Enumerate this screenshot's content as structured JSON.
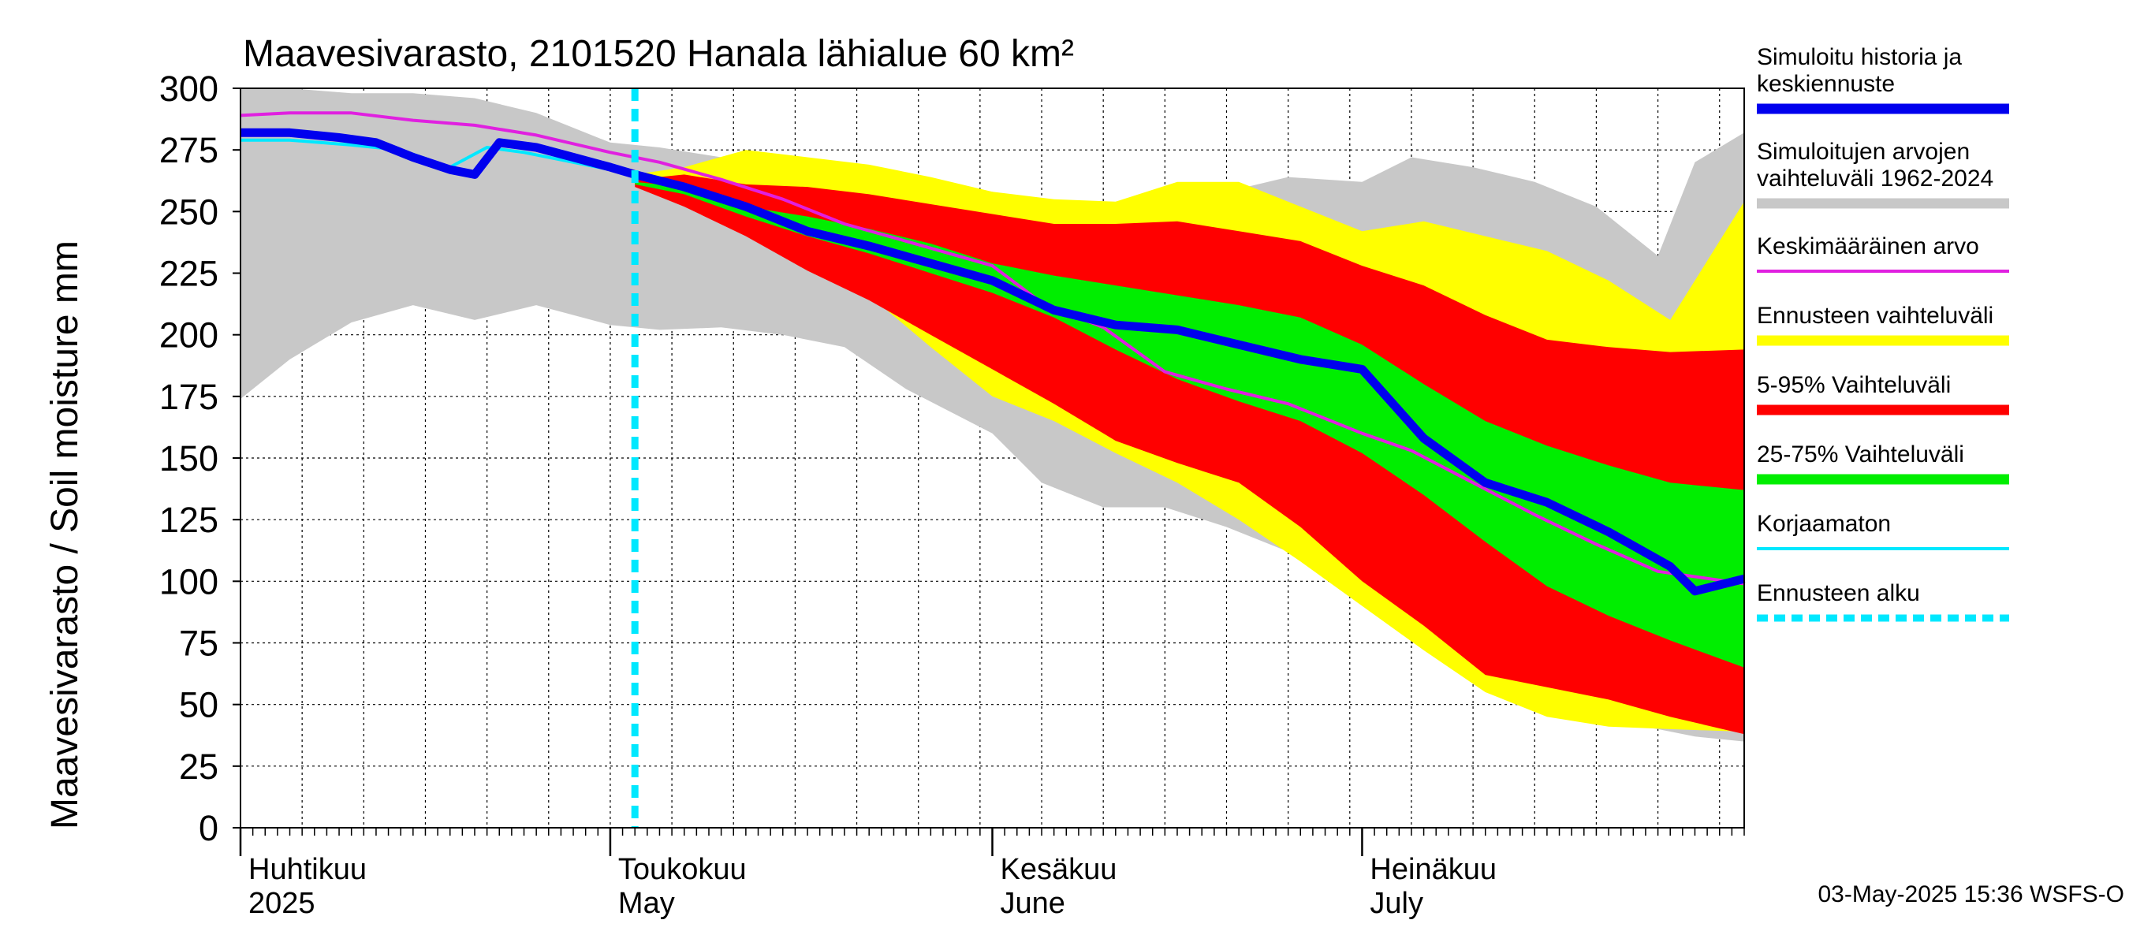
{
  "title": "Maavesivarasto, 2101520 Hanala lähialue 60 km²",
  "ylabel": "Maavesivarasto / Soil moisture   mm",
  "timestamp": "03-May-2025 15:36 WSFS-O",
  "colors": {
    "history": "#0000ee",
    "range_1962_2024": "#c8c8c8",
    "mean": "#e020e0",
    "forecast_range": "#ffff00",
    "p5_95": "#ff0000",
    "p25_75": "#00ee00",
    "uncorrected": "#00e8ff",
    "forecast_start": "#00e8ff"
  },
  "legend": [
    {
      "key": "history",
      "lines": [
        "Simuloitu historia ja",
        "keskiennuste"
      ],
      "style": "thick"
    },
    {
      "key": "range_1962_2024",
      "lines": [
        "Simuloitujen arvojen",
        "vaihteluväli 1962-2024"
      ],
      "style": "thick"
    },
    {
      "key": "mean",
      "lines": [
        "Keskimääräinen arvo"
      ],
      "style": "thin"
    },
    {
      "key": "forecast_range",
      "lines": [
        "Ennusteen vaihteluväli"
      ],
      "style": "thick"
    },
    {
      "key": "p5_95",
      "lines": [
        "5-95% Vaihteluväli"
      ],
      "style": "thick"
    },
    {
      "key": "p25_75",
      "lines": [
        "25-75% Vaihteluväli"
      ],
      "style": "thick"
    },
    {
      "key": "uncorrected",
      "lines": [
        "Korjaamaton"
      ],
      "style": "thin"
    },
    {
      "key": "forecast_start",
      "lines": [
        "Ennusteen alku"
      ],
      "style": "dashed"
    }
  ],
  "chart_data": {
    "type": "area",
    "title": "Maavesivarasto, 2101520 Hanala lähialue 60 km²",
    "ylabel": "Maavesivarasto / Soil moisture   mm",
    "ylim": [
      0,
      300
    ],
    "yticks": [
      0,
      25,
      50,
      75,
      100,
      125,
      150,
      175,
      200,
      225,
      250,
      275,
      300
    ],
    "xlim": [
      "2025-04-01",
      "2025-08-01"
    ],
    "grid": true,
    "legend_position": "right",
    "forecast_start": "2025-05-03",
    "x_months": [
      {
        "start": "2025-04-01",
        "fi": "Huhtikuu",
        "en": "2025"
      },
      {
        "start": "2025-05-01",
        "fi": "Toukokuu",
        "en": "May"
      },
      {
        "start": "2025-06-01",
        "fi": "Kesäkuu",
        "en": "June"
      },
      {
        "start": "2025-07-01",
        "fi": "Heinäkuu",
        "en": "July"
      }
    ],
    "range_1962_2024": {
      "x": [
        "2025-04-01",
        "2025-04-05",
        "2025-04-10",
        "2025-04-15",
        "2025-04-20",
        "2025-04-25",
        "2025-05-01",
        "2025-05-05",
        "2025-05-10",
        "2025-05-15",
        "2025-05-20",
        "2025-05-25",
        "2025-06-01",
        "2025-06-05",
        "2025-06-10",
        "2025-06-15",
        "2025-06-20",
        "2025-06-25",
        "2025-07-01",
        "2025-07-05",
        "2025-07-10",
        "2025-07-15",
        "2025-07-20",
        "2025-07-25",
        "2025-07-28",
        "2025-08-01"
      ],
      "upper": [
        300,
        300,
        298,
        298,
        296,
        290,
        278,
        276,
        272,
        270,
        266,
        262,
        258,
        254,
        252,
        256,
        258,
        264,
        262,
        272,
        268,
        262,
        252,
        232,
        270,
        282
      ],
      "lower": [
        174,
        190,
        205,
        212,
        206,
        212,
        204,
        202,
        203,
        200,
        195,
        178,
        160,
        140,
        130,
        130,
        122,
        112,
        100,
        84,
        62,
        48,
        44,
        40,
        37,
        35
      ]
    },
    "forecast_range": {
      "x": [
        "2025-05-03",
        "2025-05-07",
        "2025-05-12",
        "2025-05-17",
        "2025-05-22",
        "2025-05-27",
        "2025-06-01",
        "2025-06-06",
        "2025-06-11",
        "2025-06-16",
        "2025-06-21",
        "2025-06-26",
        "2025-07-01",
        "2025-07-06",
        "2025-07-11",
        "2025-07-16",
        "2025-07-21",
        "2025-07-26",
        "2025-08-01"
      ],
      "upper": [
        265,
        268,
        275,
        272,
        269,
        264,
        258,
        255,
        254,
        262,
        262,
        252,
        242,
        246,
        240,
        234,
        222,
        206,
        254
      ],
      "lower": [
        262,
        255,
        243,
        230,
        216,
        195,
        175,
        165,
        152,
        140,
        125,
        108,
        90,
        72,
        55,
        45,
        41,
        40,
        39
      ]
    },
    "p5_95": {
      "x": [
        "2025-05-03",
        "2025-05-07",
        "2025-05-12",
        "2025-05-17",
        "2025-05-22",
        "2025-05-27",
        "2025-06-01",
        "2025-06-06",
        "2025-06-11",
        "2025-06-16",
        "2025-06-21",
        "2025-06-26",
        "2025-07-01",
        "2025-07-06",
        "2025-07-11",
        "2025-07-16",
        "2025-07-21",
        "2025-07-26",
        "2025-08-01"
      ],
      "upper": [
        263,
        265,
        261,
        260,
        257,
        253,
        249,
        245,
        245,
        246,
        242,
        238,
        228,
        220,
        208,
        198,
        195,
        193,
        194
      ],
      "lower": [
        260,
        252,
        240,
        226,
        214,
        200,
        186,
        172,
        157,
        148,
        140,
        122,
        100,
        82,
        62,
        57,
        52,
        45,
        38
      ]
    },
    "p25_75": {
      "x": [
        "2025-05-03",
        "2025-05-07",
        "2025-05-12",
        "2025-05-17",
        "2025-05-22",
        "2025-05-27",
        "2025-06-01",
        "2025-06-06",
        "2025-06-11",
        "2025-06-16",
        "2025-06-21",
        "2025-06-26",
        "2025-07-01",
        "2025-07-06",
        "2025-07-11",
        "2025-07-16",
        "2025-07-21",
        "2025-07-26",
        "2025-08-01"
      ],
      "upper": [
        262,
        260,
        252,
        248,
        243,
        237,
        229,
        224,
        220,
        216,
        212,
        207,
        196,
        180,
        165,
        155,
        147,
        140,
        137
      ],
      "lower": [
        261,
        257,
        248,
        240,
        233,
        225,
        217,
        207,
        194,
        182,
        173,
        165,
        152,
        135,
        116,
        98,
        86,
        76,
        65
      ]
    },
    "history": {
      "x": [
        "2025-04-01",
        "2025-04-05",
        "2025-04-09",
        "2025-04-12",
        "2025-04-15",
        "2025-04-18",
        "2025-04-20",
        "2025-04-22",
        "2025-04-25",
        "2025-04-28",
        "2025-05-01",
        "2025-05-03",
        "2025-05-07",
        "2025-05-12",
        "2025-05-17",
        "2025-05-22",
        "2025-05-27",
        "2025-06-01",
        "2025-06-06",
        "2025-06-11",
        "2025-06-16",
        "2025-06-21",
        "2025-06-26",
        "2025-07-01",
        "2025-07-06",
        "2025-07-11",
        "2025-07-16",
        "2025-07-21",
        "2025-07-26",
        "2025-07-28",
        "2025-08-01"
      ],
      "y": [
        282,
        282,
        280,
        278,
        272,
        267,
        265,
        278,
        276,
        272,
        268,
        265,
        260,
        252,
        242,
        236,
        229,
        222,
        210,
        204,
        202,
        196,
        190,
        186,
        158,
        140,
        132,
        120,
        106,
        96,
        101
      ]
    },
    "mean": {
      "x": [
        "2025-04-01",
        "2025-04-05",
        "2025-04-10",
        "2025-04-15",
        "2025-04-20",
        "2025-04-25",
        "2025-05-01",
        "2025-05-05",
        "2025-05-10",
        "2025-05-15",
        "2025-05-20",
        "2025-05-25",
        "2025-06-01",
        "2025-06-05",
        "2025-06-10",
        "2025-06-15",
        "2025-06-20",
        "2025-06-25",
        "2025-07-01",
        "2025-07-05",
        "2025-07-10",
        "2025-07-15",
        "2025-07-20",
        "2025-07-25",
        "2025-08-01"
      ],
      "y": [
        289,
        290,
        290,
        287,
        285,
        281,
        274,
        270,
        263,
        255,
        245,
        238,
        228,
        213,
        203,
        185,
        178,
        172,
        160,
        153,
        140,
        127,
        115,
        104,
        99
      ]
    },
    "uncorrected": {
      "x": [
        "2025-04-01",
        "2025-04-05",
        "2025-04-10",
        "2025-04-14",
        "2025-04-18",
        "2025-04-21",
        "2025-04-24",
        "2025-04-28",
        "2025-05-01"
      ],
      "y": [
        279,
        279,
        277,
        275,
        268,
        276,
        274,
        270,
        267
      ]
    }
  }
}
